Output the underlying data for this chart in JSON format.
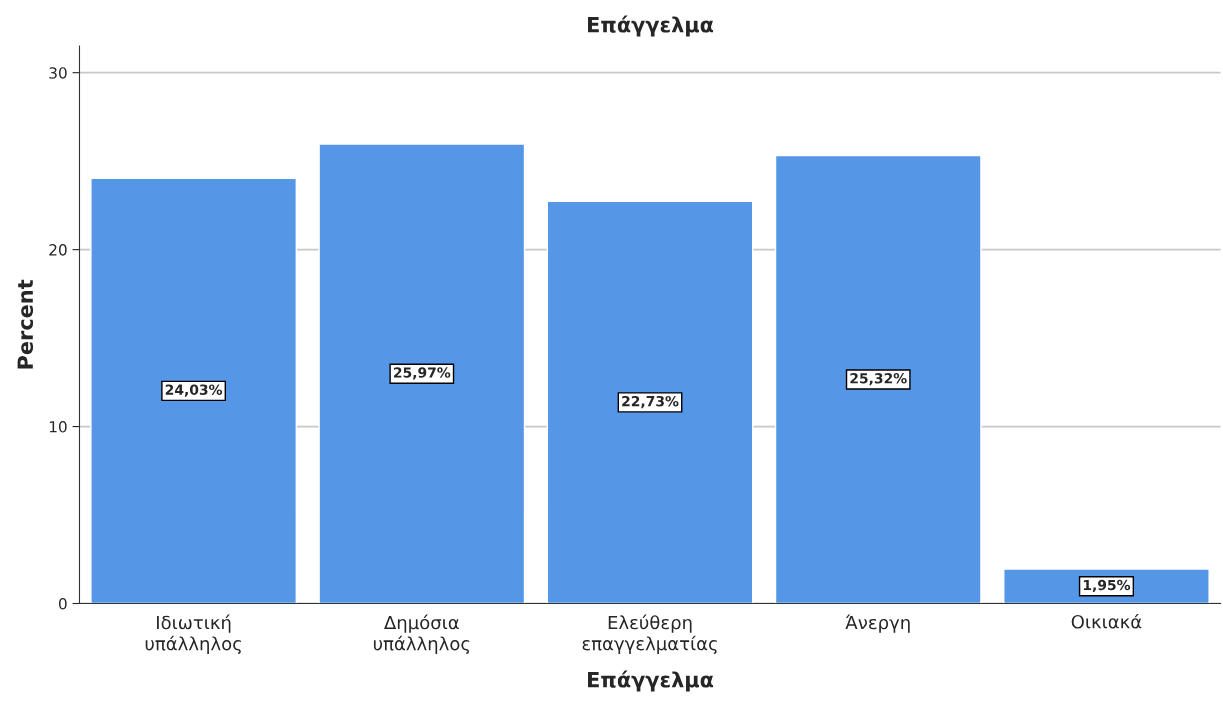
{
  "chart_data": {
    "type": "bar",
    "title": "Επάγγελμα",
    "xlabel": "Επάγγελμα",
    "ylabel": "Percent",
    "categories": [
      "Ιδιωτική\nυπάλληλος",
      "Δημόσια\nυπάλληλος",
      "Ελεύθερη\nεπαγγελματίας",
      "Άνεργη",
      "Οικιακά"
    ],
    "values": [
      24.03,
      25.97,
      22.73,
      25.32,
      1.95
    ],
    "value_labels": [
      "24,03%",
      "25,97%",
      "22,73%",
      "25,32%",
      "1,95%"
    ],
    "color": "#5596e6",
    "ylim": [
      0,
      31.5
    ],
    "yticks": [
      0,
      10,
      20,
      30
    ],
    "grid": "y",
    "legend": false
  }
}
